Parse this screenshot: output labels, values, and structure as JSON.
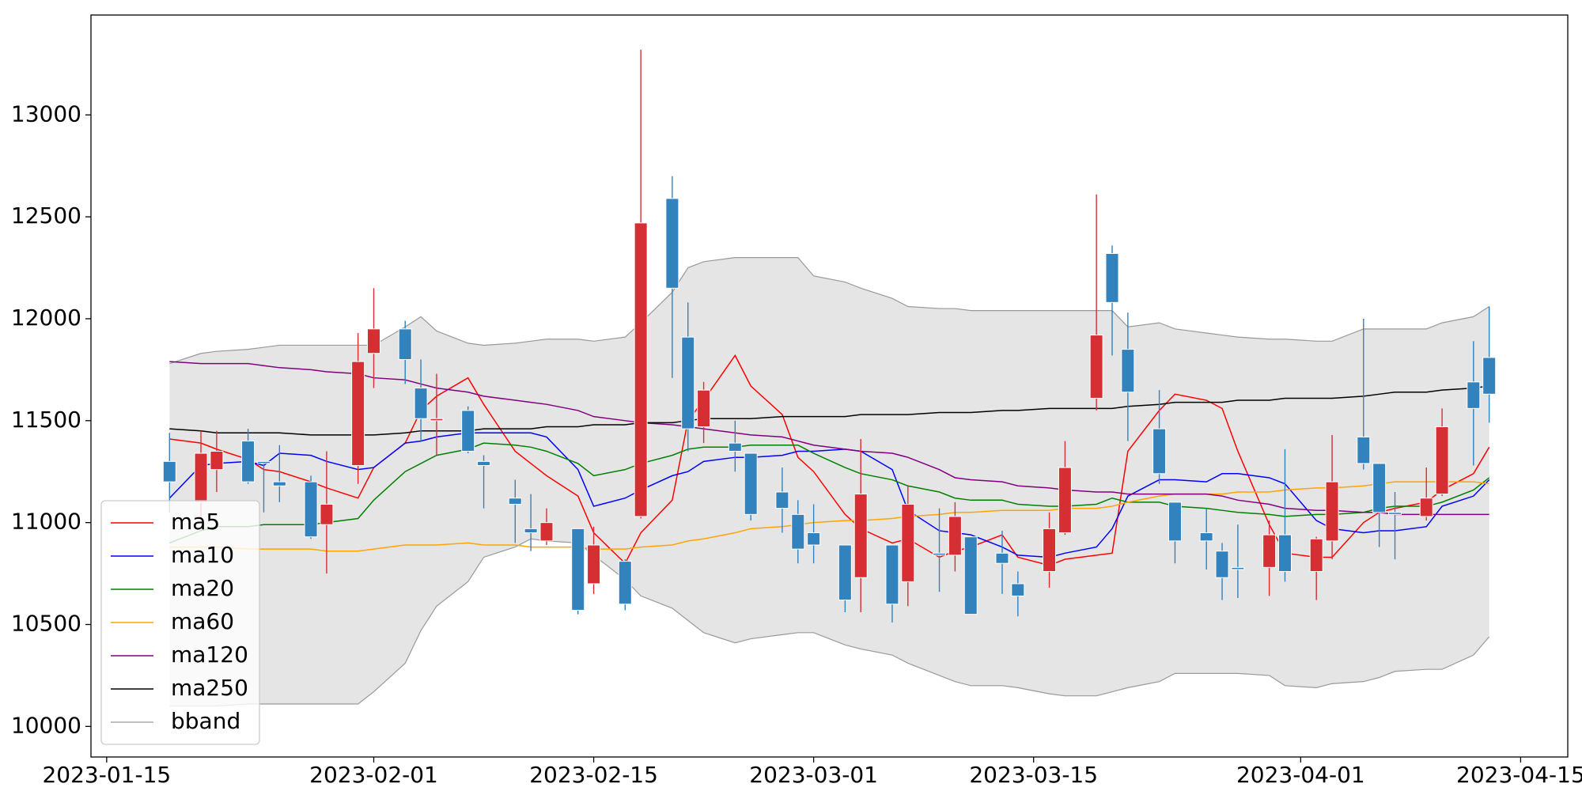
{
  "chart_data": {
    "type": "candlestick",
    "x": [
      "2023-01-19",
      "2023-01-21",
      "2023-01-22",
      "2023-01-24",
      "2023-01-25",
      "2023-01-26",
      "2023-01-28",
      "2023-01-29",
      "2023-01-31",
      "2023-02-01",
      "2023-02-03",
      "2023-02-04",
      "2023-02-05",
      "2023-02-07",
      "2023-02-08",
      "2023-02-10",
      "2023-02-11",
      "2023-02-12",
      "2023-02-14",
      "2023-02-15",
      "2023-02-17",
      "2023-02-18",
      "2023-02-20",
      "2023-02-21",
      "2023-02-22",
      "2023-02-24",
      "2023-02-25",
      "2023-02-27",
      "2023-02-28",
      "2023-03-01",
      "2023-03-03",
      "2023-03-04",
      "2023-03-06",
      "2023-03-07",
      "2023-03-09",
      "2023-03-10",
      "2023-03-11",
      "2023-03-13",
      "2023-03-14",
      "2023-03-16",
      "2023-03-17",
      "2023-03-19",
      "2023-03-20",
      "2023-03-21",
      "2023-03-23",
      "2023-03-24",
      "2023-03-26",
      "2023-03-27",
      "2023-03-28",
      "2023-03-30",
      "2023-03-31",
      "2023-04-02",
      "2023-04-03",
      "2023-04-05",
      "2023-04-06",
      "2023-04-07",
      "2023-04-09",
      "2023-04-10",
      "2023-04-12",
      "2023-04-13"
    ],
    "open": [
      11300,
      11100,
      11260,
      11400,
      11300,
      11200,
      11200,
      10990,
      11280,
      11830,
      11950,
      11660,
      11500,
      11550,
      11300,
      11120,
      10970,
      10910,
      10970,
      10700,
      10810,
      11030,
      12590,
      11910,
      11470,
      11390,
      11340,
      11150,
      11040,
      10950,
      10890,
      10730,
      10890,
      10710,
      10850,
      10840,
      10930,
      10850,
      10700,
      10760,
      10950,
      11610,
      12320,
      11850,
      11460,
      11100,
      10950,
      10860,
      10780,
      10780,
      10940,
      10760,
      10910,
      11420,
      11290,
      11050,
      11030,
      11140,
      11690,
      11810
    ],
    "high": [
      11440,
      11450,
      11450,
      11460,
      11300,
      11380,
      11230,
      11350,
      11930,
      12150,
      11990,
      11800,
      11730,
      11570,
      11330,
      11210,
      11140,
      11070,
      10970,
      10980,
      10820,
      13320,
      12700,
      12080,
      11690,
      11500,
      11340,
      11270,
      11110,
      11090,
      10890,
      11410,
      10890,
      11180,
      11070,
      11100,
      10930,
      10960,
      10760,
      11050,
      11400,
      12610,
      12360,
      12030,
      11650,
      11100,
      11070,
      10900,
      10990,
      11010,
      11360,
      10930,
      11430,
      12000,
      11290,
      11150,
      11270,
      11560,
      11890,
      12060
    ],
    "low": [
      11050,
      11020,
      11150,
      11190,
      11050,
      11100,
      10920,
      10750,
      11190,
      11660,
      11680,
      11400,
      11330,
      11340,
      11070,
      10900,
      10860,
      10890,
      10550,
      10650,
      10570,
      11020,
      11710,
      11350,
      11390,
      11250,
      11010,
      10950,
      10800,
      10800,
      10560,
      10560,
      10510,
      10590,
      10660,
      10760,
      10550,
      10650,
      10540,
      10680,
      10940,
      11550,
      11820,
      11400,
      11190,
      10800,
      10770,
      10620,
      10630,
      10640,
      10710,
      10620,
      10820,
      11260,
      10880,
      10820,
      11010,
      11130,
      11280,
      11490
    ],
    "close": [
      11200,
      11340,
      11350,
      11200,
      11290,
      11180,
      10930,
      11090,
      11790,
      11950,
      11800,
      11510,
      11510,
      11350,
      11280,
      11090,
      10950,
      11000,
      10570,
      10890,
      10600,
      12470,
      12150,
      11460,
      11650,
      11350,
      11040,
      11070,
      10870,
      10890,
      10620,
      11140,
      10600,
      11090,
      10840,
      11030,
      10550,
      10800,
      10640,
      10970,
      11270,
      11920,
      12080,
      11640,
      11240,
      10910,
      10910,
      10730,
      10770,
      10940,
      10760,
      10920,
      11200,
      11290,
      11050,
      11040,
      11120,
      11470,
      11560,
      11630
    ],
    "up_color": "#d62f33",
    "down_color": "#3182bd",
    "series": [
      {
        "name": "ma5",
        "color": "#ff0000",
        "values": [
          11410,
          11390,
          11360,
          11310,
          11260,
          11250,
          11200,
          11170,
          11120,
          11270,
          11390,
          11550,
          11620,
          11710,
          11580,
          11350,
          11290,
          11230,
          11130,
          10950,
          10800,
          10950,
          11110,
          11500,
          11600,
          11820,
          11670,
          11530,
          11320,
          11250,
          11040,
          10970,
          10900,
          10920,
          10830,
          10860,
          10880,
          10940,
          10830,
          10790,
          10820,
          10840,
          10850,
          11350,
          11550,
          11630,
          11600,
          11560,
          11350,
          10990,
          10850,
          10830,
          10830,
          11000,
          11050,
          11070,
          11100,
          11160,
          11240,
          11370
        ]
      },
      {
        "name": "ma10",
        "color": "#0000ff",
        "values": [
          11120,
          11280,
          11290,
          11300,
          11280,
          11340,
          11330,
          11300,
          11260,
          11270,
          11390,
          11400,
          11420,
          11440,
          11440,
          11440,
          11440,
          11420,
          11260,
          11080,
          11120,
          11160,
          11230,
          11250,
          11300,
          11320,
          11320,
          11330,
          11350,
          11350,
          11360,
          11350,
          11260,
          11060,
          10960,
          10950,
          10940,
          10880,
          10840,
          10830,
          10850,
          10880,
          10970,
          11130,
          11210,
          11210,
          11200,
          11240,
          11240,
          11220,
          11190,
          11010,
          10970,
          10950,
          10960,
          10960,
          10980,
          11080,
          11130,
          11210
        ]
      },
      {
        "name": "ma20",
        "color": "#008000",
        "values": [
          10900,
          10960,
          10980,
          10980,
          10990,
          10990,
          10990,
          11000,
          11020,
          11110,
          11250,
          11290,
          11330,
          11360,
          11390,
          11380,
          11370,
          11350,
          11290,
          11230,
          11260,
          11290,
          11330,
          11360,
          11370,
          11370,
          11380,
          11380,
          11380,
          11340,
          11270,
          11240,
          11210,
          11180,
          11150,
          11120,
          11110,
          11110,
          11090,
          11080,
          11080,
          11090,
          11120,
          11100,
          11100,
          11080,
          11070,
          11060,
          11050,
          11040,
          11030,
          11040,
          11040,
          11050,
          11070,
          11080,
          11080,
          11100,
          11160,
          11220
        ]
      },
      {
        "name": "ma60",
        "color": "#ffa500",
        "values": [
          10880,
          10880,
          10880,
          10870,
          10870,
          10870,
          10870,
          10860,
          10860,
          10870,
          10890,
          10890,
          10890,
          10900,
          10890,
          10890,
          10880,
          10880,
          10880,
          10870,
          10870,
          10880,
          10890,
          10910,
          10920,
          10950,
          10970,
          10980,
          10990,
          11000,
          11010,
          11010,
          11020,
          11030,
          11040,
          11050,
          11050,
          11060,
          11060,
          11060,
          11070,
          11070,
          11080,
          11100,
          11130,
          11140,
          11140,
          11140,
          11150,
          11150,
          11160,
          11170,
          11170,
          11180,
          11190,
          11200,
          11200,
          11200,
          11200,
          11190
        ]
      },
      {
        "name": "ma120",
        "color": "#800080",
        "values": [
          11790,
          11780,
          11780,
          11780,
          11770,
          11760,
          11750,
          11740,
          11730,
          11710,
          11700,
          11680,
          11660,
          11640,
          11620,
          11600,
          11590,
          11580,
          11550,
          11520,
          11500,
          11490,
          11480,
          11470,
          11460,
          11440,
          11430,
          11420,
          11400,
          11380,
          11360,
          11350,
          11340,
          11320,
          11260,
          11220,
          11210,
          11200,
          11180,
          11170,
          11160,
          11150,
          11150,
          11140,
          11140,
          11140,
          11140,
          11130,
          11110,
          11090,
          11070,
          11060,
          11060,
          11050,
          11050,
          11040,
          11040,
          11040,
          11040,
          11040
        ]
      },
      {
        "name": "ma250",
        "color": "#000000",
        "values": [
          11460,
          11450,
          11440,
          11440,
          11440,
          11440,
          11430,
          11430,
          11430,
          11430,
          11440,
          11450,
          11450,
          11450,
          11460,
          11460,
          11460,
          11470,
          11470,
          11480,
          11480,
          11490,
          11490,
          11500,
          11510,
          11510,
          11510,
          11520,
          11520,
          11520,
          11520,
          11530,
          11530,
          11530,
          11540,
          11540,
          11540,
          11550,
          11550,
          11560,
          11560,
          11560,
          11560,
          11570,
          11580,
          11590,
          11590,
          11590,
          11600,
          11600,
          11610,
          11610,
          11610,
          11620,
          11630,
          11640,
          11640,
          11650,
          11660,
          11670
        ]
      }
    ],
    "band": {
      "name": "bband",
      "color": "#999999",
      "fill": "#e5e5e5",
      "upper": [
        11780,
        11830,
        11840,
        11850,
        11860,
        11870,
        11870,
        11870,
        11870,
        11870,
        11960,
        12010,
        11940,
        11880,
        11870,
        11880,
        11890,
        11900,
        11900,
        11890,
        11910,
        11980,
        12130,
        12250,
        12280,
        12300,
        12300,
        12300,
        12300,
        12210,
        12180,
        12150,
        12100,
        12060,
        12050,
        12050,
        12040,
        12040,
        12040,
        12040,
        12040,
        12040,
        12040,
        11960,
        11980,
        11950,
        11930,
        11920,
        11910,
        11900,
        11900,
        11890,
        11890,
        11950,
        11950,
        11950,
        11950,
        11980,
        12010,
        12060
      ],
      "lower": [
        10100,
        10100,
        10100,
        10110,
        10110,
        10110,
        10110,
        10110,
        10110,
        10170,
        10310,
        10470,
        10590,
        10710,
        10830,
        10880,
        10920,
        10910,
        10900,
        10840,
        10720,
        10640,
        10580,
        10520,
        10460,
        10410,
        10430,
        10450,
        10460,
        10460,
        10400,
        10380,
        10350,
        10310,
        10250,
        10220,
        10200,
        10200,
        10190,
        10160,
        10150,
        10150,
        10170,
        10190,
        10220,
        10260,
        10260,
        10260,
        10260,
        10250,
        10200,
        10190,
        10210,
        10220,
        10240,
        10270,
        10280,
        10280,
        10350,
        10440
      ]
    },
    "xlim": [
      "2023-01-14",
      "2023-04-18"
    ],
    "xticks": [
      "2023-01-15",
      "2023-02-01",
      "2023-02-15",
      "2023-03-01",
      "2023-03-15",
      "2023-04-01",
      "2023-04-15"
    ],
    "ylim": [
      9850,
      13490
    ],
    "yticks": [
      10000,
      10500,
      11000,
      11500,
      12000,
      12500,
      13000
    ],
    "legend": "lower left"
  }
}
